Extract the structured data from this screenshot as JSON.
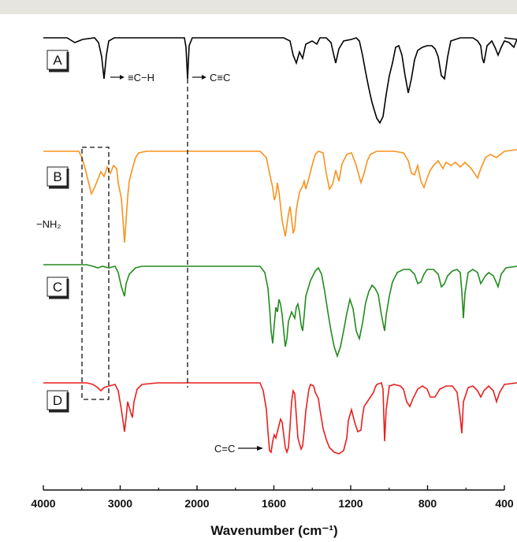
{
  "chart_data": {
    "type": "line",
    "xlabel": "Wavenumber (cm⁻¹)",
    "xlim": [
      4000,
      400
    ],
    "x_ticks": [
      "4000",
      "3000",
      "2000",
      "1600",
      "1200",
      "800",
      "400"
    ],
    "series": [
      {
        "name": "A",
        "color": "#000000"
      },
      {
        "name": "B",
        "color": "#f7931e"
      },
      {
        "name": "C",
        "color": "#238b1e"
      },
      {
        "name": "D",
        "color": "#e8201e"
      }
    ],
    "annotations": {
      "alkyne_ch": "≡C−H",
      "alkyne_cc": "C≡C",
      "amine": "−NH₂",
      "alkene": "C=C"
    }
  }
}
